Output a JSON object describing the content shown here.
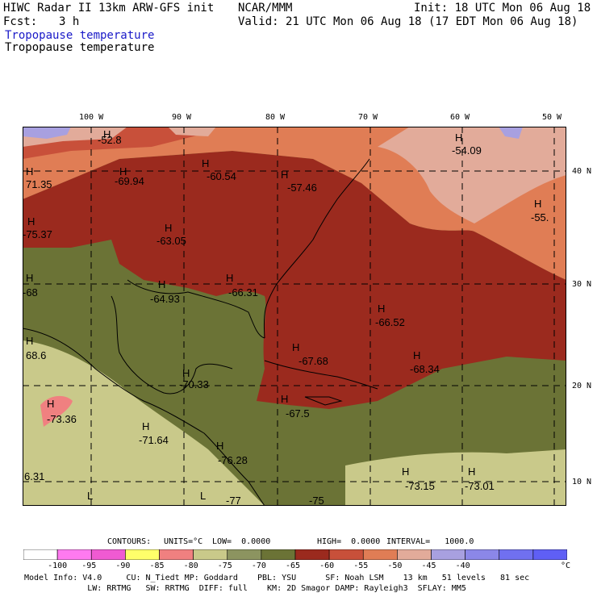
{
  "header": {
    "model_line": "HIWC Radar II 13km ARW-GFS init",
    "org": "NCAR/MMM",
    "init": "Init: 18 UTC Mon 06 Aug 18",
    "fcst_label": "Fcst:",
    "fcst_value": "3 h",
    "valid": "Valid: 21 UTC Mon 06 Aug 18 (17 EDT Mon 06 Aug 18)",
    "field_title_1": "Tropopause temperature",
    "field_title_2": "Tropopause temperature"
  },
  "axes": {
    "lon_labels": [
      "100 W",
      "90 W",
      "80 W",
      "70 W",
      "60 W",
      "50 W"
    ],
    "lat_labels": [
      "40 N",
      "30 N",
      "20 N",
      "10 N"
    ]
  },
  "extrema": [
    {
      "mark": "H",
      "value": "-52.8"
    },
    {
      "mark": "H",
      "value": "-54.09"
    },
    {
      "mark": "H",
      "value": "71.35"
    },
    {
      "mark": "H",
      "value": "-69.94"
    },
    {
      "mark": "H",
      "value": "-60.54"
    },
    {
      "mark": "H",
      "value": "-57.46"
    },
    {
      "mark": "H",
      "value": "-55."
    },
    {
      "mark": "H",
      "value": "-75.37"
    },
    {
      "mark": "H",
      "value": "-63.05"
    },
    {
      "mark": "H",
      "value": "-68"
    },
    {
      "mark": "H",
      "value": "-64.93"
    },
    {
      "mark": "H",
      "value": "-66.31"
    },
    {
      "mark": "H",
      "value": "-66.52"
    },
    {
      "mark": "H",
      "value": "68.6"
    },
    {
      "mark": "H",
      "value": "-67.68"
    },
    {
      "mark": "H",
      "value": "-68.34"
    },
    {
      "mark": "H",
      "value": "-70.33"
    },
    {
      "mark": "H",
      "value": "-73.36"
    },
    {
      "mark": "H",
      "value": "-67.5"
    },
    {
      "mark": "H",
      "value": "-71.64"
    },
    {
      "mark": "H",
      "value": "-76.28"
    },
    {
      "mark": "H",
      "value": "6.31"
    },
    {
      "mark": "H",
      "value": "-73.15"
    },
    {
      "mark": "H",
      "value": "-73.01"
    },
    {
      "mark": "L",
      "value": "-77"
    },
    {
      "mark": "L",
      "value": "-75"
    }
  ],
  "contours": {
    "label": "CONTOURS:",
    "units": "UNITS=°C",
    "low": "LOW=  0.0000",
    "high": "HIGH=  0.0000",
    "interval": "INTERVAL=   1000.0"
  },
  "colorbar": {
    "colors": [
      "#ffffff",
      "#ff7af0",
      "#f05ad2",
      "#ffff6a",
      "#f08080",
      "#c9c98a",
      "#8c9460",
      "#6b7336",
      "#9b2a1e",
      "#c8503a",
      "#e07d55",
      "#e2ab9a",
      "#a8a0e0",
      "#8b87e8",
      "#7070f0",
      "#5f5ff5"
    ],
    "labels": [
      "-100",
      "-95",
      "-90",
      "-85",
      "-80",
      "-75",
      "-70",
      "-65",
      "-60",
      "-55",
      "-50",
      "-45",
      "-40"
    ],
    "unit": "°C"
  },
  "footer": {
    "line1": "Model Info: V4.0     CU: N_Tiedt MP: Goddard    PBL: YSU      SF: Noah LSM    13 km   51 levels   81 sec",
    "line2": "             LW: RRTMG   SW: RRTMG  DIFF: full    KM: 2D Smagor DAMP: Rayleigh3  SFLAY: MM5"
  }
}
